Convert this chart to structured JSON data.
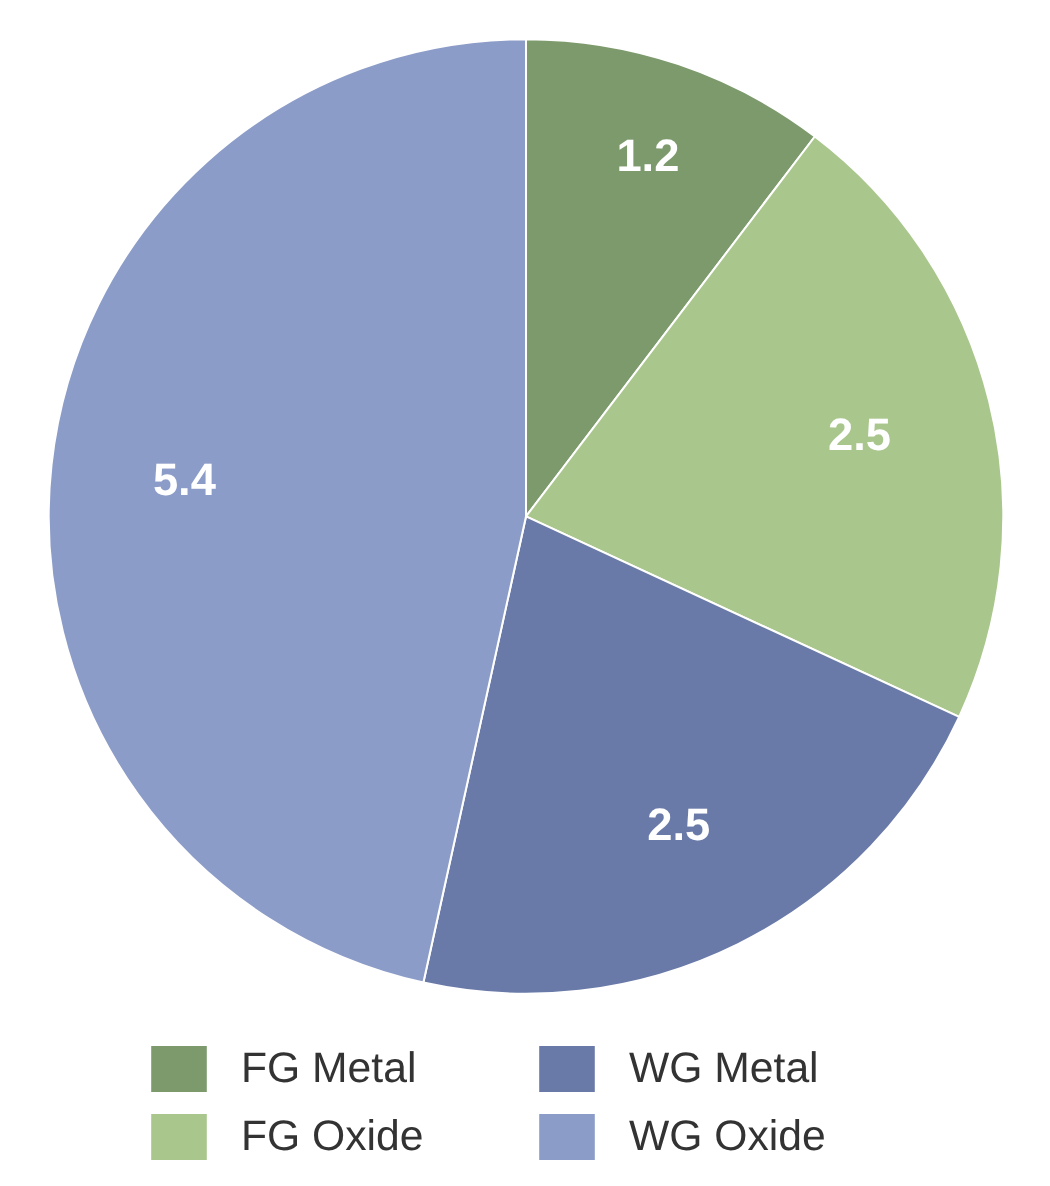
{
  "chart_data": {
    "type": "pie",
    "categories": [
      "FG Metal",
      "FG Oxide",
      "WG Metal",
      "WG Oxide"
    ],
    "values": [
      1.2,
      2.5,
      2.5,
      5.4
    ],
    "colors": [
      "#7d9a6c",
      "#a9c68c",
      "#6a7aa8",
      "#8c9cc8"
    ],
    "data_labels": true,
    "legend": "bottom"
  }
}
